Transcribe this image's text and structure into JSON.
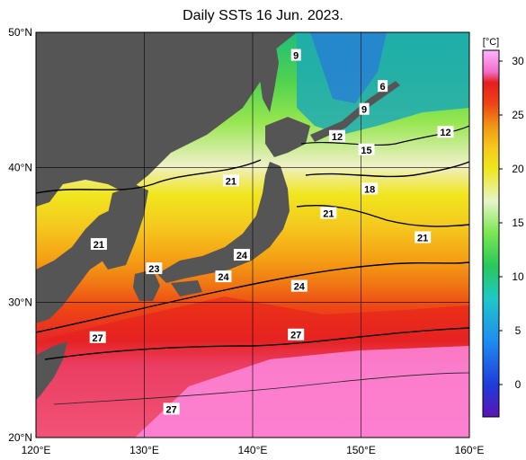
{
  "title": "Daily SSTs 16 Jun. 2023.",
  "map": {
    "lon_range": [
      120,
      160
    ],
    "lat_range": [
      20,
      50
    ],
    "lon_ticks": [
      {
        "value": 120,
        "label": "120°E"
      },
      {
        "value": 130,
        "label": "130°E"
      },
      {
        "value": 140,
        "label": "140°E"
      },
      {
        "value": 150,
        "label": "150°E"
      },
      {
        "value": 160,
        "label": "160°E"
      }
    ],
    "lat_ticks": [
      {
        "value": 20,
        "label": "20°N"
      },
      {
        "value": 30,
        "label": "30°N"
      },
      {
        "value": 40,
        "label": "40°N"
      },
      {
        "value": 50,
        "label": "50°N"
      }
    ],
    "land_color": "#555555",
    "contour_labels": [
      {
        "text": "9",
        "lon": 144.0,
        "lat": 48.3
      },
      {
        "text": "6",
        "lon": 152.0,
        "lat": 46.0
      },
      {
        "text": "9",
        "lon": 150.3,
        "lat": 44.3
      },
      {
        "text": "12",
        "lon": 147.8,
        "lat": 42.3
      },
      {
        "text": "12",
        "lon": 157.8,
        "lat": 42.6
      },
      {
        "text": "15",
        "lon": 150.5,
        "lat": 41.3
      },
      {
        "text": "21",
        "lon": 138.0,
        "lat": 39.0
      },
      {
        "text": "18",
        "lon": 150.8,
        "lat": 38.4
      },
      {
        "text": "21",
        "lon": 147.0,
        "lat": 36.6
      },
      {
        "text": "21",
        "lon": 125.8,
        "lat": 34.3
      },
      {
        "text": "21",
        "lon": 155.7,
        "lat": 34.8
      },
      {
        "text": "24",
        "lon": 139.0,
        "lat": 33.5
      },
      {
        "text": "23",
        "lon": 130.9,
        "lat": 32.5
      },
      {
        "text": "24",
        "lon": 137.3,
        "lat": 31.9
      },
      {
        "text": "24",
        "lon": 144.3,
        "lat": 31.2
      },
      {
        "text": "27",
        "lon": 125.7,
        "lat": 27.4
      },
      {
        "text": "27",
        "lon": 144.0,
        "lat": 27.6
      },
      {
        "text": "27",
        "lon": 132.5,
        "lat": 22.1
      }
    ]
  },
  "colorbar": {
    "unit_label": "[°C]",
    "range": [
      -3,
      31
    ],
    "ticks": [
      {
        "value": 30,
        "label": "30"
      },
      {
        "value": 25,
        "label": "25"
      },
      {
        "value": 20,
        "label": "20"
      },
      {
        "value": 15,
        "label": "15"
      },
      {
        "value": 10,
        "label": "10"
      },
      {
        "value": 5,
        "label": "5"
      },
      {
        "value": 0,
        "label": "0"
      }
    ],
    "stops": [
      {
        "value": -3,
        "color": "#5a14b4"
      },
      {
        "value": 0,
        "color": "#1e3cdc"
      },
      {
        "value": 4,
        "color": "#1e8cf0"
      },
      {
        "value": 8,
        "color": "#1ec8c8"
      },
      {
        "value": 11,
        "color": "#28c85a"
      },
      {
        "value": 14,
        "color": "#78e650"
      },
      {
        "value": 17,
        "color": "#e6f5c8"
      },
      {
        "value": 20,
        "color": "#f0e61e"
      },
      {
        "value": 22,
        "color": "#f5c81e"
      },
      {
        "value": 24,
        "color": "#f09614"
      },
      {
        "value": 26,
        "color": "#ee4614"
      },
      {
        "value": 28,
        "color": "#e61e1e"
      },
      {
        "value": 29,
        "color": "#f06ec8"
      },
      {
        "value": 31,
        "color": "#ffb4ff"
      }
    ]
  }
}
